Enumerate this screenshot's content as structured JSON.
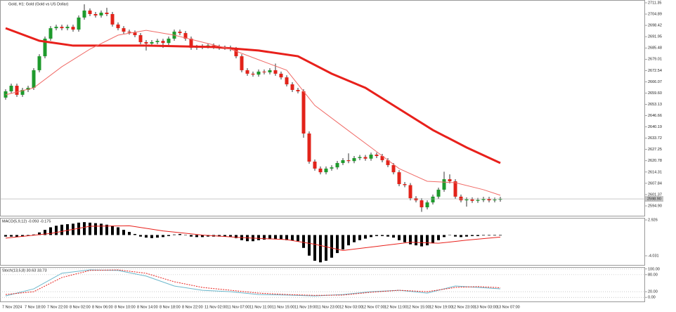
{
  "chart_data": [
    {
      "type": "candlestick",
      "title": "Gold, H1: Gold (Gold vs US Dollar)",
      "categories": [
        "7 Nov 2024",
        null,
        null,
        null,
        "7 Nov 18:00",
        null,
        null,
        null,
        "7 Nov 22:00",
        null,
        null,
        null,
        "8 Nov 02:00",
        null,
        null,
        null,
        "8 Nov 06:00",
        null,
        null,
        null,
        "8 Nov 10:00",
        null,
        null,
        null,
        "8 Nov 14:00",
        null,
        null,
        null,
        "8 Nov 18:00",
        null,
        null,
        null,
        "8 Nov 22:00",
        null,
        null,
        null,
        "11 Nov 02:00",
        null,
        null,
        null,
        "11 Nov 07:00",
        null,
        null,
        null,
        "11 Nov 11:00",
        null,
        null,
        null,
        "11 Nov 15:00",
        null,
        null,
        null,
        "11 Nov 19:00",
        null,
        null,
        null,
        "11 Nov 23:00",
        null,
        null,
        null,
        "12 Nov 03:00",
        null,
        null,
        null,
        "12 Nov 07:00",
        null,
        null,
        null,
        "12 Nov 11:00",
        null,
        null,
        null,
        "12 Nov 15:00",
        null,
        null,
        null,
        "12 Nov 19:00",
        null,
        null,
        null,
        "12 Nov 23:00",
        null,
        null,
        null,
        "13 Nov 03:00",
        null,
        null,
        null,
        "13 Nov 07:00"
      ],
      "open": [
        2657.0,
        2660.6,
        2663.8,
        2658.6,
        2661.4,
        2662.6,
        2672.7,
        2680.7,
        2690.8,
        2696.8,
        2697.6,
        2696.8,
        2697.6,
        2696.0,
        2702.9,
        2706.9,
        2704.9,
        2704.1,
        2705.7,
        2704.9,
        2698.9,
        2696.8,
        2694.8,
        2694.3,
        2692.8,
        2688.8,
        2688.0,
        2688.8,
        2689.5,
        2688.3,
        2690.8,
        2694.8,
        2694.0,
        2690.8,
        2685.6,
        2686.0,
        2686.4,
        2686.9,
        2686.1,
        2685.6,
        2685.6,
        2684.8,
        2680.7,
        2672.7,
        2670.7,
        2670.2,
        2671.9,
        2671.5,
        2672.7,
        2670.7,
        2668.6,
        2664.6,
        2661.4,
        2660.6,
        2636.4,
        2620.3,
        2616.3,
        2614.2,
        2616.3,
        2617.0,
        2619.5,
        2621.1,
        2620.6,
        2622.3,
        2622.9,
        2622.0,
        2624.3,
        2623.5,
        2621.1,
        2618.3,
        2614.2,
        2607.4,
        2606.8,
        2599.3,
        2598.1,
        2594.1,
        2596.9,
        2600.2,
        2604.2,
        2610.2,
        2609.0,
        2600.2,
        2598.1,
        2598.6,
        2597.8,
        2598.3,
        2598.9,
        2598.1,
        2598.5
      ],
      "high": [
        2661.8,
        2665.0,
        2665.0,
        2662.6,
        2663.8,
        2673.9,
        2681.9,
        2692.0,
        2698.0,
        2698.8,
        2698.8,
        2698.8,
        2698.8,
        2704.1,
        2710.5,
        2708.1,
        2706.1,
        2706.9,
        2708.5,
        2706.1,
        2700.1,
        2698.0,
        2696.0,
        2695.5,
        2694.0,
        2690.0,
        2690.0,
        2690.7,
        2690.7,
        2692.0,
        2696.0,
        2696.0,
        2695.2,
        2692.0,
        2687.2,
        2687.6,
        2688.1,
        2688.1,
        2687.3,
        2686.8,
        2686.8,
        2686.0,
        2681.9,
        2673.9,
        2671.9,
        2673.1,
        2673.1,
        2673.9,
        2676.5,
        2671.9,
        2669.8,
        2665.8,
        2662.6,
        2661.8,
        2637.6,
        2621.5,
        2617.5,
        2617.5,
        2618.2,
        2620.7,
        2622.3,
        2625.0,
        2623.5,
        2624.1,
        2624.1,
        2625.5,
        2625.5,
        2624.7,
        2622.3,
        2619.5,
        2615.4,
        2608.6,
        2608.0,
        2600.5,
        2599.3,
        2598.1,
        2601.4,
        2605.4,
        2614.5,
        2613.0,
        2610.2,
        2601.4,
        2599.8,
        2599.8,
        2599.5,
        2600.1,
        2600.1,
        2599.7,
        2600.1
      ],
      "low": [
        2655.8,
        2659.4,
        2657.4,
        2657.4,
        2660.2,
        2661.4,
        2671.5,
        2679.5,
        2689.6,
        2695.6,
        2695.6,
        2695.6,
        2694.8,
        2694.8,
        2701.7,
        2703.7,
        2702.9,
        2702.9,
        2703.7,
        2697.7,
        2695.6,
        2693.6,
        2693.1,
        2691.6,
        2687.6,
        2684.0,
        2686.8,
        2687.6,
        2685.5,
        2687.1,
        2689.6,
        2692.8,
        2689.6,
        2684.4,
        2684.4,
        2684.8,
        2685.2,
        2684.9,
        2684.4,
        2684.4,
        2683.6,
        2679.5,
        2671.5,
        2669.5,
        2669.0,
        2669.0,
        2670.3,
        2670.3,
        2669.5,
        2667.4,
        2663.4,
        2660.2,
        2659.4,
        2634.0,
        2619.1,
        2615.1,
        2613.0,
        2613.0,
        2615.1,
        2615.8,
        2618.3,
        2619.4,
        2619.4,
        2621.1,
        2620.8,
        2620.8,
        2622.3,
        2619.9,
        2617.1,
        2613.0,
        2606.2,
        2605.6,
        2598.1,
        2596.9,
        2591.5,
        2592.9,
        2595.7,
        2599.0,
        2603.0,
        2607.8,
        2599.0,
        2596.9,
        2594.5,
        2596.6,
        2596.6,
        2597.1,
        2596.9,
        2596.9,
        2597.3
      ],
      "close": [
        2660.6,
        2663.8,
        2658.6,
        2661.4,
        2662.6,
        2672.7,
        2680.7,
        2690.8,
        2696.8,
        2697.6,
        2696.8,
        2697.6,
        2696.0,
        2702.9,
        2706.9,
        2704.9,
        2704.1,
        2705.7,
        2704.9,
        2698.9,
        2696.8,
        2694.8,
        2694.3,
        2692.8,
        2688.8,
        2688.0,
        2688.8,
        2689.5,
        2688.3,
        2690.8,
        2694.8,
        2694.0,
        2690.8,
        2685.6,
        2686.0,
        2686.4,
        2686.9,
        2686.1,
        2685.6,
        2685.6,
        2684.8,
        2680.7,
        2672.7,
        2670.7,
        2670.2,
        2671.9,
        2671.5,
        2672.7,
        2670.7,
        2668.6,
        2664.6,
        2661.4,
        2660.6,
        2636.4,
        2620.3,
        2616.3,
        2614.2,
        2616.3,
        2617.0,
        2619.5,
        2621.1,
        2620.6,
        2622.3,
        2622.9,
        2622.0,
        2624.3,
        2623.5,
        2621.1,
        2618.3,
        2614.2,
        2607.4,
        2606.8,
        2599.3,
        2598.1,
        2594.1,
        2596.9,
        2600.2,
        2604.2,
        2610.2,
        2609.0,
        2600.2,
        2598.1,
        2598.6,
        2597.8,
        2598.3,
        2598.9,
        2598.1,
        2598.5,
        2598.9
      ],
      "up_color": "#1e9a2c",
      "down_color": "#e2231a",
      "series": [
        {
          "color": "#e8201b",
          "width": 3,
          "x": [
            0,
            6,
            12,
            25,
            37,
            45,
            52,
            58,
            64,
            70,
            76,
            82,
            88
          ],
          "values": [
            2696.8,
            2689.6,
            2686.8,
            2686.8,
            2686.0,
            2684.0,
            2680.7,
            2670.7,
            2662.6,
            2650.5,
            2638.4,
            2628.4,
            2619.5
          ]
        },
        {
          "color": "#f06a66",
          "width": 1,
          "x": [
            0,
            5,
            10,
            15,
            20,
            25,
            30,
            35,
            40,
            45,
            50,
            55,
            60,
            65,
            70,
            75,
            80,
            85,
            88
          ],
          "values": [
            2658.6,
            2662.6,
            2674.7,
            2684.8,
            2692.8,
            2695.6,
            2692.8,
            2688.8,
            2684.8,
            2678.7,
            2672.7,
            2652.5,
            2640.4,
            2628.4,
            2616.3,
            2609.0,
            2608.2,
            2604.2,
            2601.0
          ]
        }
      ],
      "last_price": {
        "value": 2598.9,
        "label": "2598.90"
      },
      "ylim": [
        2588.86,
        2712.96
      ],
      "yticks": [
        2711.35,
        2704.89,
        2698.42,
        2691.95,
        2685.48,
        2679.01,
        2672.54,
        2666.07,
        {
          "value": 2659.6,
          "label": "2659.60"
        },
        2653.13,
        2646.66,
        2640.19,
        2633.72,
        2627.25,
        2620.78,
        2614.31,
        2607.84,
        2601.37,
        {
          "value": 2594.9,
          "label": "2594.90"
        }
      ]
    },
    {
      "type": "macd",
      "title": "MACD(5,9,12) -0.093 -0.175",
      "color": "#000000",
      "values": [
        -0.3,
        -0.3,
        -0.4,
        -0.3,
        -0.2,
        0.1,
        0.5,
        1.0,
        1.5,
        1.8,
        2.0,
        2.1,
        2.2,
        2.4,
        2.5,
        2.4,
        2.3,
        2.2,
        2.0,
        1.8,
        1.5,
        1.0,
        0.6,
        0.2,
        -0.3,
        -0.5,
        -0.6,
        -0.5,
        -0.4,
        -0.2,
        0.1,
        0.2,
        0.0,
        -0.3,
        -0.4,
        -0.4,
        -0.3,
        -0.3,
        -0.3,
        -0.3,
        -0.3,
        -0.6,
        -1.0,
        -1.2,
        -1.2,
        -1.0,
        -0.9,
        -0.8,
        -0.8,
        -0.8,
        -1.0,
        -1.1,
        -1.2,
        -2.5,
        -4.0,
        -5.0,
        -5.3,
        -5.0,
        -4.4,
        -3.5,
        -2.8,
        -2.0,
        -1.4,
        -1.0,
        -0.7,
        -0.4,
        -0.2,
        -0.2,
        -0.3,
        -0.5,
        -1.0,
        -1.4,
        -1.8,
        -2.0,
        -2.2,
        -2.0,
        -1.6,
        -1.0,
        -0.4,
        0.0,
        -0.3,
        -0.4,
        -0.3,
        -0.2,
        -0.2,
        -0.1,
        -0.1,
        -0.1,
        -0.1
      ],
      "series": [
        {
          "color": "#e8201b",
          "width": 1,
          "x": [
            0,
            8,
            15,
            22,
            28,
            35,
            42,
            50,
            55,
            60,
            66,
            72,
            77,
            82,
            88
          ],
          "values": [
            -0.6,
            0.3,
            1.7,
            1.8,
            0.8,
            0.0,
            -0.5,
            -0.9,
            -1.8,
            -3.0,
            -2.2,
            -1.4,
            -1.6,
            -1.0,
            -0.4
          ]
        }
      ],
      "ylim": [
        -5.94,
        3.335
      ],
      "yticks": [
        2.926,
        -4.031
      ]
    },
    {
      "type": "stochastic",
      "title": "Stoch(13,5,8) 30.63 33.73",
      "level_lines": true,
      "series": [
        {
          "color": "#6cb8cc",
          "width": 1,
          "x": [
            0,
            5,
            10,
            15,
            20,
            25,
            30,
            35,
            40,
            45,
            50,
            55,
            60,
            65,
            70,
            75,
            80,
            84,
            88
          ],
          "values": [
            5,
            30,
            85,
            97,
            95,
            75,
            40,
            25,
            20,
            10,
            8,
            5,
            10,
            20,
            25,
            15,
            40,
            35,
            30
          ]
        },
        {
          "color": "#e8201b",
          "width": 1,
          "dashed": true,
          "x": [
            0,
            5,
            10,
            15,
            20,
            25,
            30,
            35,
            40,
            45,
            50,
            55,
            60,
            65,
            70,
            75,
            80,
            84,
            88
          ],
          "values": [
            10,
            20,
            70,
            95,
            97,
            85,
            55,
            35,
            25,
            15,
            10,
            7,
            8,
            18,
            25,
            20,
            35,
            38,
            34
          ]
        }
      ],
      "ylim": [
        -17,
        107
      ],
      "yticks": [
        {
          "value": 100,
          "label": "100.00"
        },
        {
          "value": 80,
          "label": "80.00"
        },
        {
          "value": 20,
          "label": "20.00"
        },
        {
          "value": 0,
          "label": "0.00"
        }
      ]
    }
  ]
}
